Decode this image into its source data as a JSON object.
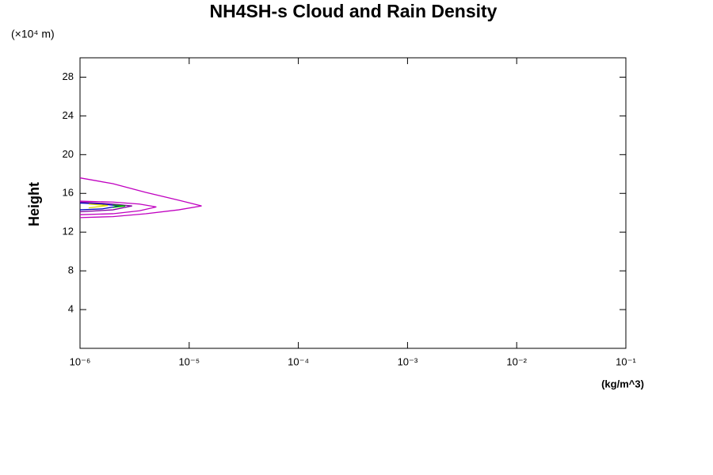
{
  "chart_data": {
    "type": "line",
    "title": "NH4SH-s Cloud and Rain Density",
    "y_unit": "(×10⁴ m)",
    "ylabel": "Height",
    "xlabel": "(kg/m^3)",
    "xlog": true,
    "xlim": [
      1e-06,
      0.1
    ],
    "xticks": [
      {
        "value": 1e-06,
        "label": "10⁻⁶"
      },
      {
        "value": 1e-05,
        "label": "10⁻⁵"
      },
      {
        "value": 0.0001,
        "label": "10⁻⁴"
      },
      {
        "value": 0.001,
        "label": "10⁻³"
      },
      {
        "value": 0.01,
        "label": "10⁻²"
      },
      {
        "value": 0.1,
        "label": "10⁻¹"
      }
    ],
    "ylim": [
      0,
      30
    ],
    "yticks": [
      4,
      8,
      12,
      16,
      20,
      24,
      28
    ],
    "series": [
      {
        "color": "#c000c0",
        "x": [
          1e-06,
          2e-06,
          4e-06,
          8e-06,
          1.3e-05,
          8e-06,
          4e-06,
          2e-06,
          1e-06
        ],
        "values": [
          17.6,
          17.0,
          16.1,
          15.3,
          14.7,
          14.3,
          13.9,
          13.6,
          13.5
        ]
      },
      {
        "color": "#c000c0",
        "x": [
          1e-06,
          2e-06,
          3.5e-06,
          5e-06,
          3.5e-06,
          2e-06,
          1e-06
        ],
        "values": [
          15.2,
          15.1,
          14.9,
          14.6,
          14.2,
          13.9,
          13.8
        ]
      },
      {
        "color": "#8000a0",
        "x": [
          1e-06,
          2e-06,
          3e-06,
          2e-06,
          1e-06
        ],
        "values": [
          15.1,
          14.9,
          14.7,
          14.3,
          14.1
        ]
      },
      {
        "color": "#0000c0",
        "x": [
          1e-06,
          1.6e-06,
          2.3e-06,
          1.6e-06,
          1e-06
        ],
        "values": [
          15.0,
          14.9,
          14.7,
          14.4,
          14.3
        ]
      },
      {
        "color": "#e0e000",
        "x": [
          1.2e-06,
          1.8e-06,
          1.2e-06
        ],
        "values": [
          14.9,
          14.75,
          14.5
        ]
      },
      {
        "color": "#00b000",
        "x": [
          2e-06,
          2.6e-06,
          2e-06
        ],
        "values": [
          14.8,
          14.7,
          14.55
        ]
      }
    ]
  }
}
